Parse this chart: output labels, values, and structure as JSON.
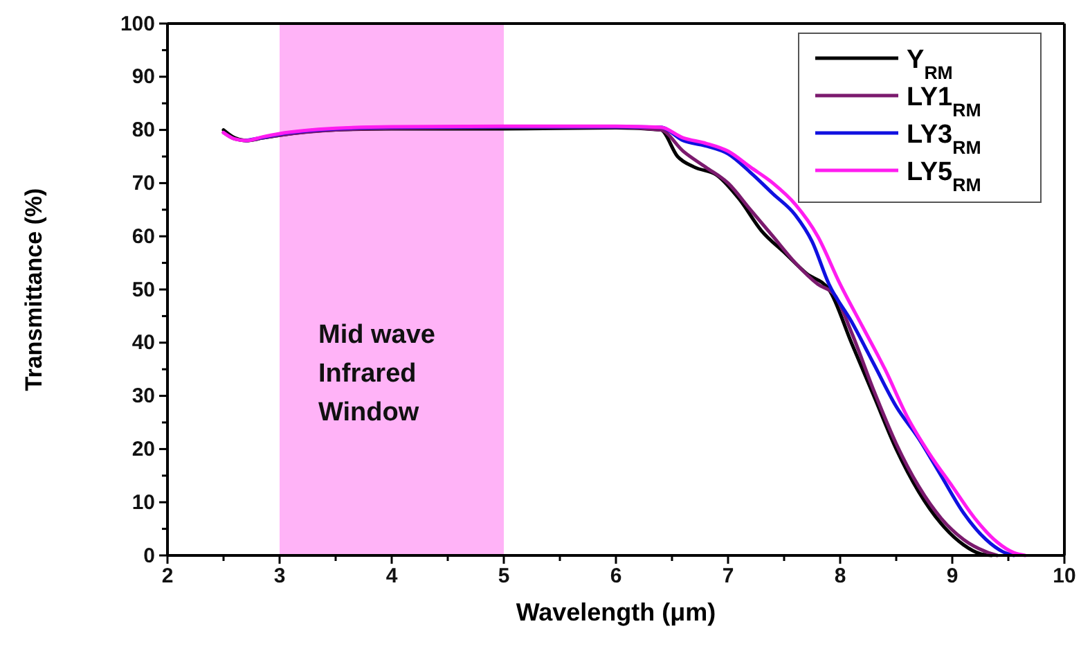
{
  "chart_data": {
    "type": "line",
    "xlabel": "Wavelength (μm)",
    "ylabel": "Transmittance (%)",
    "xlim": [
      2,
      10
    ],
    "ylim": [
      0,
      100
    ],
    "xticks": [
      2,
      {
        "value": 2.5,
        "label": null
      },
      3,
      {
        "value": 3.5,
        "label": null
      },
      4,
      {
        "value": 4.5,
        "label": null
      },
      5,
      {
        "value": 5.5,
        "label": null
      },
      6,
      {
        "value": 6.5,
        "label": null
      },
      7,
      {
        "value": 7.5,
        "label": null
      },
      8,
      {
        "value": 8.5,
        "label": null
      },
      9,
      {
        "value": 9.5,
        "label": null
      },
      10
    ],
    "yticks": [
      0,
      {
        "value": 5,
        "label": null
      },
      10,
      {
        "value": 15,
        "label": null
      },
      20,
      {
        "value": 25,
        "label": null
      },
      30,
      {
        "value": 35,
        "label": null
      },
      40,
      {
        "value": 45,
        "label": null
      },
      50,
      {
        "value": 55,
        "label": null
      },
      60,
      {
        "value": 65,
        "label": null
      },
      70,
      {
        "value": 75,
        "label": null
      },
      80,
      {
        "value": 85,
        "label": null
      },
      90,
      {
        "value": 95,
        "label": null
      },
      100
    ],
    "grid": false,
    "legend": "top right",
    "line_style": "solid",
    "bands": [
      {
        "axis": "x",
        "from": 3,
        "to": 5,
        "label": "Mid wave Infrared Window",
        "color": "#ffb3f7"
      }
    ],
    "series": [
      {
        "name": "Y$_{RM}$",
        "color": "#000000",
        "x": [
          2.5,
          2.6,
          2.7,
          2.85,
          3,
          3.5,
          4,
          5,
          6,
          6.4,
          6.55,
          6.7,
          6.9,
          7.1,
          7.3,
          7.5,
          7.7,
          7.9,
          8.1,
          8.3,
          8.5,
          8.7,
          8.9,
          9.1,
          9.25,
          9.35
        ],
        "values": [
          80,
          78.5,
          78,
          78.5,
          79,
          80,
          80.2,
          80.2,
          80.4,
          80,
          75,
          73,
          71.5,
          67,
          61,
          57,
          53,
          50,
          40,
          30,
          20,
          12,
          6,
          2,
          0.3,
          0
        ]
      },
      {
        "name": "LY1$_{RM}$",
        "color": "#7b1a6e",
        "x": [
          2.5,
          2.6,
          2.7,
          2.85,
          3,
          3.5,
          4,
          5,
          6,
          6.4,
          6.6,
          6.8,
          7,
          7.2,
          7.4,
          7.6,
          7.8,
          7.95,
          8.1,
          8.3,
          8.5,
          8.7,
          8.9,
          9.1,
          9.3,
          9.4
        ],
        "values": [
          79.5,
          78.3,
          78,
          78.5,
          79,
          80,
          80.3,
          80.5,
          80.5,
          80,
          76,
          73,
          70,
          65,
          60,
          55,
          51,
          49,
          42,
          31,
          21,
          13,
          7,
          3,
          0.7,
          0
        ]
      },
      {
        "name": "LY3$_{RM}$",
        "color": "#1010e0",
        "x": [
          2.7,
          2.85,
          3,
          3.5,
          4,
          5,
          6,
          6.4,
          6.6,
          6.8,
          7,
          7.2,
          7.4,
          7.6,
          7.75,
          7.9,
          8.1,
          8.3,
          8.5,
          8.7,
          8.9,
          9.1,
          9.3,
          9.45,
          9.55
        ],
        "values": [
          78,
          78.6,
          79.2,
          80.2,
          80.5,
          80.6,
          80.6,
          80.5,
          78,
          77,
          75.5,
          72,
          68,
          64,
          59,
          51,
          44,
          36,
          28,
          22,
          15,
          8,
          3,
          0.7,
          0
        ]
      },
      {
        "name": "LY5$_{RM}$",
        "color": "#ff1cf0",
        "x": [
          2.5,
          2.6,
          2.7,
          2.85,
          3,
          3.5,
          4,
          5,
          6,
          6.4,
          6.6,
          6.8,
          7,
          7.2,
          7.4,
          7.6,
          7.8,
          8,
          8.2,
          8.4,
          8.6,
          8.8,
          9,
          9.2,
          9.4,
          9.55,
          9.65
        ],
        "values": [
          79.5,
          78.3,
          78,
          78.7,
          79.3,
          80.3,
          80.6,
          80.7,
          80.7,
          80.5,
          78.5,
          77.5,
          76,
          73,
          70,
          66,
          60,
          51,
          43,
          35,
          26,
          19,
          13,
          7,
          2.5,
          0.5,
          0
        ]
      }
    ]
  }
}
